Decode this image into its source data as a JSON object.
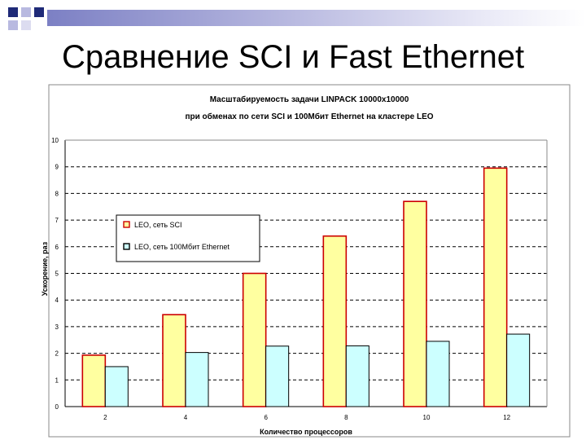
{
  "slide": {
    "title": "Сравнение SCI и Fast Ethernet"
  },
  "chart_data": {
    "type": "bar",
    "title": "Масштабируемость задачи LINPACK 10000x10000",
    "subtitle": "при обменах по сети SCI и 100Мбит Ethernet на кластере LEO",
    "xlabel": "Количество процессоров",
    "ylabel": "Ускорение, раз",
    "categories": [
      "2",
      "4",
      "6",
      "8",
      "10",
      "12"
    ],
    "series": [
      {
        "name": "LEO, сеть SCI",
        "values": [
          1.93,
          3.45,
          5.0,
          6.4,
          7.7,
          8.95
        ],
        "color": "#ffffa0",
        "stroke": "#cc0000"
      },
      {
        "name": "LEO, сеть 100Мбит Ethernet",
        "values": [
          1.5,
          2.03,
          2.27,
          2.28,
          2.45,
          2.72
        ],
        "color": "#ccffff",
        "stroke": "#000000"
      }
    ],
    "ylim": [
      0,
      10
    ],
    "yticks": [
      "0",
      "1",
      "2",
      "3",
      "4",
      "5",
      "6",
      "7",
      "8",
      "9",
      "10"
    ],
    "grid": true,
    "legend_position": "top-left"
  },
  "colors": {
    "deco_navy": "#1f2a78",
    "deco_lavender": "#b8b9e0",
    "grid_line": "#000000",
    "border": "#888888"
  }
}
